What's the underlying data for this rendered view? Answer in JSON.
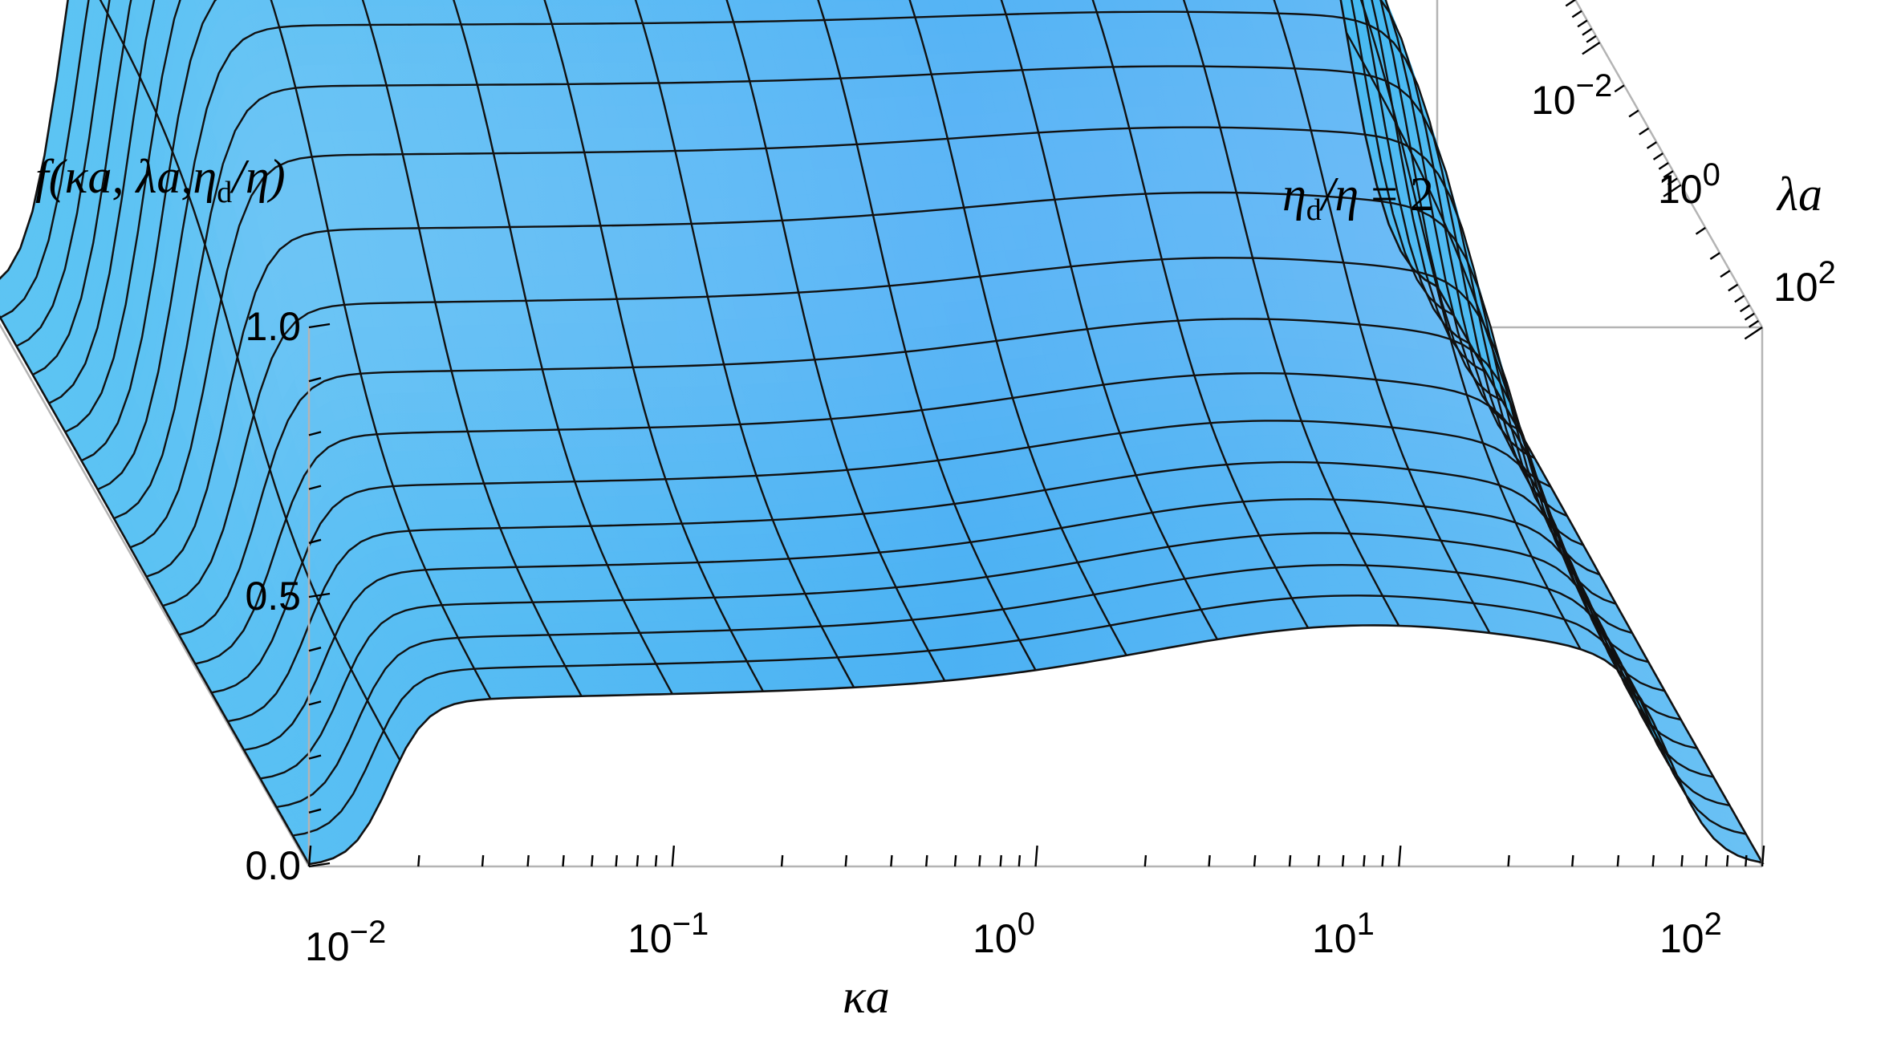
{
  "chart_data": {
    "type": "surface",
    "zlabel": {
      "main": "f(κa, λa,η",
      "sub": "d",
      "tail": "/η)"
    },
    "annotation": {
      "a": "η",
      "sub": "d",
      "b": "/η",
      "c": " = 2"
    },
    "xlabel": "κa",
    "ylabel": "λa",
    "x_scale": "log",
    "y_scale": "log",
    "x_range": [
      0.01,
      100
    ],
    "y_range": [
      0.01,
      100
    ],
    "z_range": [
      0,
      1
    ],
    "x_ticks": [
      {
        "base": "10",
        "exp": "−2"
      },
      {
        "base": "10",
        "exp": "−1"
      },
      {
        "base": "10",
        "exp": "0"
      },
      {
        "base": "10",
        "exp": "1"
      },
      {
        "base": "10",
        "exp": "2"
      }
    ],
    "y_ticks": [
      {
        "base": "10",
        "exp": "−2"
      },
      {
        "base": "10",
        "exp": "0"
      },
      {
        "base": "10",
        "exp": "2"
      }
    ],
    "z_ticks": [
      "0.0",
      "0.5",
      "1.0"
    ],
    "surface_color": "#3ab8f0",
    "surface_color_light": "#a9d4ff",
    "surface_color_lavender": "#b7c4ff",
    "mesh_color": "#111111",
    "box_color": "#b4b4b4",
    "sample_values": {
      "lambda_a_low_plateau": 1.0,
      "lambda_a_high_plateau_small_kappa": 0.3,
      "lambda_a_high_plateau_large_kappa": 0.45,
      "kappa_a_edges_value": 0.0
    }
  }
}
